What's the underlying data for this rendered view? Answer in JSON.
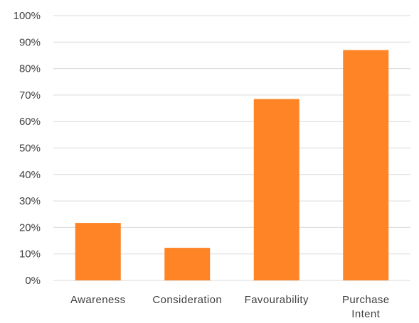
{
  "chart_data": {
    "type": "bar",
    "categories": [
      "Awareness",
      "Consideration",
      "Favourability",
      "Purchase Intent"
    ],
    "category_label_lines": [
      [
        "Awareness"
      ],
      [
        "Consideration"
      ],
      [
        "Favourability"
      ],
      [
        "Purchase",
        "Intent"
      ]
    ],
    "values": [
      21.7,
      12.3,
      68.5,
      87.0
    ],
    "ylim": [
      0,
      100
    ],
    "y_ticks": [
      "0%",
      "10%",
      "20%",
      "30%",
      "40%",
      "50%",
      "60%",
      "70%",
      "80%",
      "90%",
      "100%"
    ],
    "title": "",
    "xlabel": "",
    "ylabel": "",
    "grid": true,
    "legend": "none",
    "bar_color": "#FF8426",
    "grid_color": "#D9D9D9",
    "text_color": "#404040"
  }
}
